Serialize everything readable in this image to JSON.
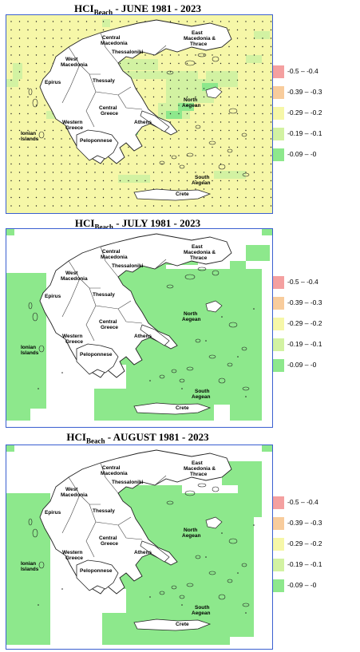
{
  "legend": {
    "items": [
      {
        "label": "-0.5 – -0.4",
        "color": "#f4a0a0"
      },
      {
        "label": "-0.39 – -0.3",
        "color": "#f8cc9c"
      },
      {
        "label": "-0.29 – -0.2",
        "color": "#f6f7a8"
      },
      {
        "label": "-0.19 – -0.1",
        "color": "#d2f2a2"
      },
      {
        "label": "-0.09 – -0",
        "color": "#8de88c"
      }
    ]
  },
  "regions": {
    "central_macedonia": "Central Macedonia",
    "east_macedonia_thrace": "East Macedonia & Thrace",
    "thessaloniki": "Thessaloniki",
    "west_macedonia": "West Macedonia",
    "thessaly": "Thessaly",
    "epirus": "Epirus",
    "north_aegean": "North Aegean",
    "central_greece": "Central Greece",
    "ionian_islands": "Ionian Islands",
    "western_greece": "Western Greece",
    "athens": "Athens",
    "peloponnese": "Peloponnese",
    "south_aegean": "South Aegean",
    "crete": "Crete"
  },
  "panels": [
    {
      "title_main": "HCI",
      "title_sub": "Beach",
      "title_period": "-     JUNE 1981 - 2023",
      "dominant_class": "-0.29 – -0.2"
    },
    {
      "title_main": "HCI",
      "title_sub": "Beach",
      "title_period": "-     JULY 1981 - 2023",
      "dominant_class": "-0.09 – -0"
    },
    {
      "title_main": "HCI",
      "title_sub": "Beach",
      "title_period": "-     AUGUST 1981 - 2023",
      "dominant_class": "-0.09 – -0"
    }
  ]
}
